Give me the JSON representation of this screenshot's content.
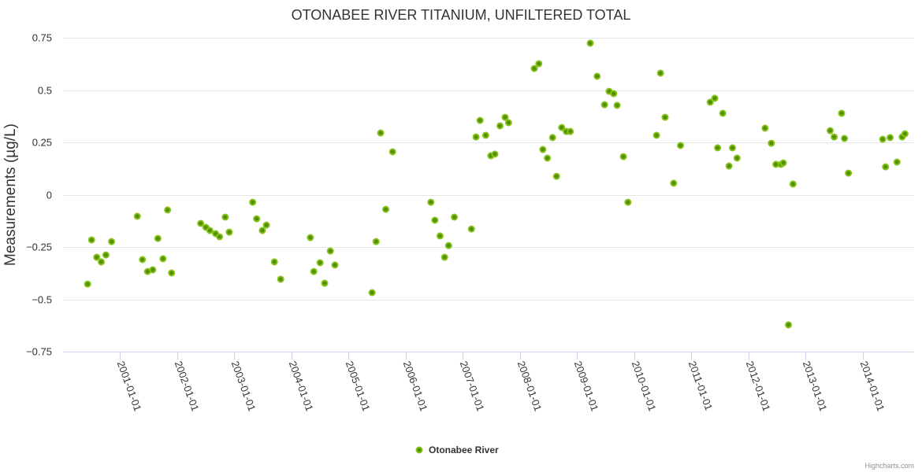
{
  "chart_data": {
    "type": "scatter",
    "title": "OTONABEE RIVER TITANIUM, UNFILTERED TOTAL",
    "xlabel": "",
    "ylabel": "Measurements (µg/L)",
    "ylim": [
      -0.75,
      0.75
    ],
    "yticks": [
      -0.75,
      -0.5,
      -0.25,
      0,
      0.25,
      0.5,
      0.75
    ],
    "ytick_labels": [
      "−0.75",
      "−0.5",
      "−0.25",
      "0",
      "0.25",
      "0.5",
      "0.75"
    ],
    "xlim": [
      2000.0,
      2014.9
    ],
    "xticks": [
      2001,
      2002,
      2003,
      2004,
      2005,
      2006,
      2007,
      2008,
      2009,
      2010,
      2011,
      2012,
      2013,
      2014
    ],
    "xtick_labels": [
      "2001-01-01",
      "2002-01-01",
      "2003-01-01",
      "2004-01-01",
      "2005-01-01",
      "2006-01-01",
      "2007-01-01",
      "2008-01-01",
      "2009-01-01",
      "2010-01-01",
      "2011-01-01",
      "2012-01-01",
      "2013-01-01",
      "2014-01-01"
    ],
    "grid": true,
    "legend_position": "bottom-center",
    "series": [
      {
        "name": "Otonabee River",
        "color": "#5c9e00",
        "x": [
          2000.43,
          2000.5,
          2000.59,
          2000.67,
          2000.75,
          2000.85,
          2001.3,
          2001.39,
          2001.48,
          2001.57,
          2001.66,
          2001.75,
          2001.83,
          2001.9,
          2002.41,
          2002.5,
          2002.57,
          2002.67,
          2002.74,
          2002.84,
          2002.91,
          2003.32,
          2003.39,
          2003.49,
          2003.56,
          2003.7,
          2003.81,
          2004.33,
          2004.39,
          2004.5,
          2004.58,
          2004.68,
          2004.76,
          2005.41,
          2005.48,
          2005.56,
          2005.65,
          2005.77,
          2006.44,
          2006.51,
          2006.6,
          2006.68,
          2006.75,
          2006.85,
          2007.15,
          2007.23,
          2007.3,
          2007.4,
          2007.49,
          2007.56,
          2007.65,
          2007.74,
          2007.8,
          2008.25,
          2008.33,
          2008.4,
          2008.48,
          2008.57,
          2008.64,
          2008.73,
          2008.81,
          2008.88,
          2009.23,
          2009.35,
          2009.48,
          2009.56,
          2009.64,
          2009.7,
          2009.81,
          2009.89,
          2010.39,
          2010.46,
          2010.54,
          2010.69,
          2010.81,
          2011.33,
          2011.41,
          2011.46,
          2011.55,
          2011.66,
          2011.72,
          2011.8,
          2012.29,
          2012.4,
          2012.48,
          2012.57,
          2012.61,
          2012.7,
          2012.78,
          2013.43,
          2013.5,
          2013.63,
          2013.68,
          2013.75,
          2014.35,
          2014.4,
          2014.48,
          2014.6,
          2014.69,
          2014.74
        ],
        "y": [
          -0.427,
          -0.216,
          -0.299,
          -0.321,
          -0.288,
          -0.224,
          -0.103,
          -0.31,
          -0.367,
          -0.359,
          -0.209,
          -0.306,
          -0.073,
          -0.374,
          -0.137,
          -0.156,
          -0.171,
          -0.186,
          -0.201,
          -0.107,
          -0.179,
          -0.036,
          -0.115,
          -0.171,
          -0.145,
          -0.321,
          -0.404,
          -0.205,
          -0.367,
          -0.325,
          -0.423,
          -0.269,
          -0.336,
          -0.468,
          -0.224,
          0.295,
          -0.07,
          0.205,
          -0.036,
          -0.122,
          -0.197,
          -0.299,
          -0.243,
          -0.107,
          -0.164,
          0.276,
          0.355,
          0.284,
          0.186,
          0.194,
          0.329,
          0.37,
          0.344,
          0.603,
          0.626,
          0.216,
          0.175,
          0.273,
          0.088,
          0.321,
          0.302,
          0.302,
          0.724,
          0.566,
          0.43,
          0.494,
          0.483,
          0.427,
          0.182,
          -0.036,
          0.284,
          0.581,
          0.37,
          0.055,
          0.235,
          0.442,
          0.461,
          0.224,
          0.389,
          0.137,
          0.224,
          0.175,
          0.318,
          0.246,
          0.145,
          0.145,
          0.152,
          -0.622,
          0.051,
          0.306,
          0.276,
          0.389,
          0.269,
          0.103,
          0.265,
          0.133,
          0.273,
          0.156,
          0.276,
          0.291
        ]
      }
    ]
  },
  "credit": "Highcharts.com"
}
